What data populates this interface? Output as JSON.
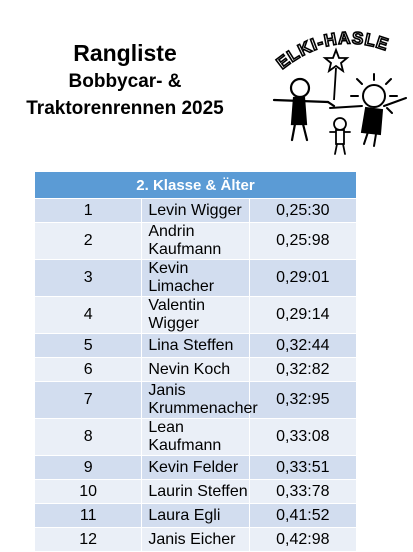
{
  "title": "Rangliste",
  "subtitle_line1": "Bobbycar- &",
  "subtitle_line2": "Traktorenrennen 2025",
  "logo_text": "ELKI-HASLE",
  "table": {
    "header": "2. Klasse & Älter",
    "rows": [
      {
        "rank": "1",
        "name": "Levin Wigger",
        "time": "0,25:30"
      },
      {
        "rank": "2",
        "name": "Andrin Kaufmann",
        "time": "0,25:98"
      },
      {
        "rank": "3",
        "name": "Kevin Limacher",
        "time": "0,29:01"
      },
      {
        "rank": "4",
        "name": "Valentin Wigger",
        "time": "0,29:14"
      },
      {
        "rank": "5",
        "name": "Lina Steffen",
        "time": "0,32:44"
      },
      {
        "rank": "6",
        "name": "Nevin Koch",
        "time": "0,32:82"
      },
      {
        "rank": "7",
        "name": "Janis Krummenacher",
        "time": "0,32:95"
      },
      {
        "rank": "8",
        "name": "Lean Kaufmann",
        "time": "0,33:08"
      },
      {
        "rank": "9",
        "name": "Kevin Felder",
        "time": "0,33:51"
      },
      {
        "rank": "10",
        "name": "Laurin Steffen",
        "time": "0,33:78"
      },
      {
        "rank": "11",
        "name": "Laura Egli",
        "time": "0,41:52"
      },
      {
        "rank": "12",
        "name": "Janis Eicher",
        "time": "0,42:98"
      }
    ]
  },
  "colors": {
    "header_bg": "#5b9bd5",
    "row_odd": "#d2ddef",
    "row_even": "#eaeff7"
  }
}
